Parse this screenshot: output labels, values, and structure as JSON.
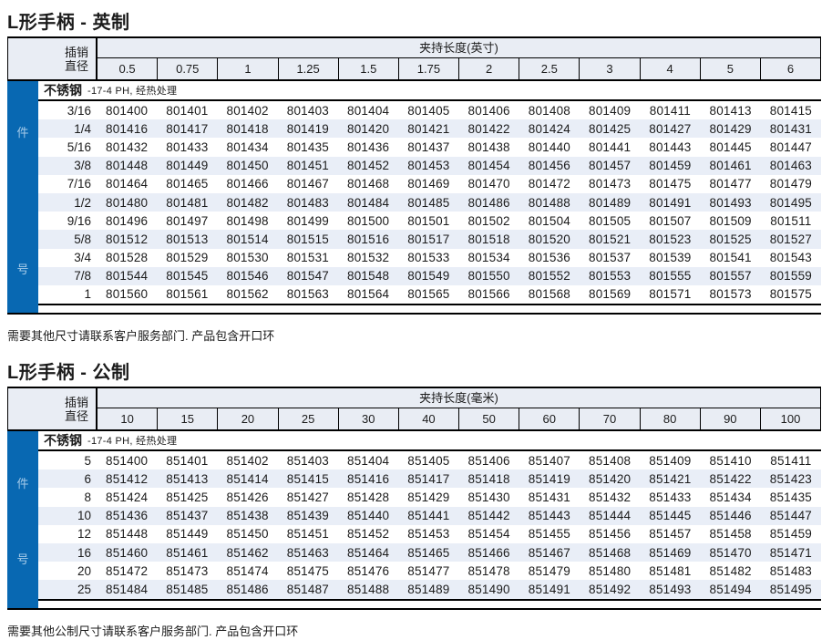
{
  "page": {
    "accent_blue": "#0868b2",
    "stripe_color": "#e9eef7",
    "header_bg": "#e9edf4"
  },
  "table1": {
    "title": "L形手柄 - 英制",
    "corner_line1": "插销",
    "corner_line2": "直径",
    "span_header": "夹持长度(英寸)",
    "columns": [
      "0.5",
      "0.75",
      "1",
      "1.25",
      "1.5",
      "1.75",
      "2",
      "2.5",
      "3",
      "4",
      "5",
      "6"
    ],
    "material_bold": "不锈钢",
    "material_rest": "-17-4 PH, 经热处理",
    "side_top": "件",
    "side_bottom": "号",
    "rows": [
      {
        "dia": "3/16",
        "parts": [
          "801400",
          "801401",
          "801402",
          "801403",
          "801404",
          "801405",
          "801406",
          "801408",
          "801409",
          "801411",
          "801413",
          "801415"
        ]
      },
      {
        "dia": "1/4",
        "parts": [
          "801416",
          "801417",
          "801418",
          "801419",
          "801420",
          "801421",
          "801422",
          "801424",
          "801425",
          "801427",
          "801429",
          "801431"
        ]
      },
      {
        "dia": "5/16",
        "parts": [
          "801432",
          "801433",
          "801434",
          "801435",
          "801436",
          "801437",
          "801438",
          "801440",
          "801441",
          "801443",
          "801445",
          "801447"
        ]
      },
      {
        "dia": "3/8",
        "parts": [
          "801448",
          "801449",
          "801450",
          "801451",
          "801452",
          "801453",
          "801454",
          "801456",
          "801457",
          "801459",
          "801461",
          "801463"
        ]
      },
      {
        "dia": "7/16",
        "parts": [
          "801464",
          "801465",
          "801466",
          "801467",
          "801468",
          "801469",
          "801470",
          "801472",
          "801473",
          "801475",
          "801477",
          "801479"
        ]
      },
      {
        "dia": "1/2",
        "parts": [
          "801480",
          "801481",
          "801482",
          "801483",
          "801484",
          "801485",
          "801486",
          "801488",
          "801489",
          "801491",
          "801493",
          "801495"
        ]
      },
      {
        "dia": "9/16",
        "parts": [
          "801496",
          "801497",
          "801498",
          "801499",
          "801500",
          "801501",
          "801502",
          "801504",
          "801505",
          "801507",
          "801509",
          "801511"
        ]
      },
      {
        "dia": "5/8",
        "parts": [
          "801512",
          "801513",
          "801514",
          "801515",
          "801516",
          "801517",
          "801518",
          "801520",
          "801521",
          "801523",
          "801525",
          "801527"
        ]
      },
      {
        "dia": "3/4",
        "parts": [
          "801528",
          "801529",
          "801530",
          "801531",
          "801532",
          "801533",
          "801534",
          "801536",
          "801537",
          "801539",
          "801541",
          "801543"
        ]
      },
      {
        "dia": "7/8",
        "parts": [
          "801544",
          "801545",
          "801546",
          "801547",
          "801548",
          "801549",
          "801550",
          "801552",
          "801553",
          "801555",
          "801557",
          "801559"
        ]
      },
      {
        "dia": "1",
        "parts": [
          "801560",
          "801561",
          "801562",
          "801563",
          "801564",
          "801565",
          "801566",
          "801568",
          "801569",
          "801571",
          "801573",
          "801575"
        ]
      }
    ],
    "note": "需要其他尺寸请联系客户服务部门.  产品包含开口环"
  },
  "table2": {
    "title": "L形手柄 - 公制",
    "corner_line1": "插销",
    "corner_line2": "直径",
    "span_header": "夹持长度(毫米)",
    "columns": [
      "10",
      "15",
      "20",
      "25",
      "30",
      "40",
      "50",
      "60",
      "70",
      "80",
      "90",
      "100"
    ],
    "material_bold": "不锈钢",
    "material_rest": "-17-4 PH, 经热处理",
    "side_top": "件",
    "side_bottom": "号",
    "rows": [
      {
        "dia": "5",
        "parts": [
          "851400",
          "851401",
          "851402",
          "851403",
          "851404",
          "851405",
          "851406",
          "851407",
          "851408",
          "851409",
          "851410",
          "851411"
        ]
      },
      {
        "dia": "6",
        "parts": [
          "851412",
          "851413",
          "851414",
          "851415",
          "851416",
          "851417",
          "851418",
          "851419",
          "851420",
          "851421",
          "851422",
          "851423"
        ]
      },
      {
        "dia": "8",
        "parts": [
          "851424",
          "851425",
          "851426",
          "851427",
          "851428",
          "851429",
          "851430",
          "851431",
          "851432",
          "851433",
          "851434",
          "851435"
        ]
      },
      {
        "dia": "10",
        "parts": [
          "851436",
          "851437",
          "851438",
          "851439",
          "851440",
          "851441",
          "851442",
          "851443",
          "851444",
          "851445",
          "851446",
          "851447"
        ]
      },
      {
        "dia": "12",
        "parts": [
          "851448",
          "851449",
          "851450",
          "851451",
          "851452",
          "851453",
          "851454",
          "851455",
          "851456",
          "851457",
          "851458",
          "851459"
        ]
      },
      {
        "dia": "16",
        "parts": [
          "851460",
          "851461",
          "851462",
          "851463",
          "851464",
          "851465",
          "851466",
          "851467",
          "851468",
          "851469",
          "851470",
          "851471"
        ]
      },
      {
        "dia": "20",
        "parts": [
          "851472",
          "851473",
          "851474",
          "851475",
          "851476",
          "851477",
          "851478",
          "851479",
          "851480",
          "851481",
          "851482",
          "851483"
        ]
      },
      {
        "dia": "25",
        "parts": [
          "851484",
          "851485",
          "851486",
          "851487",
          "851488",
          "851489",
          "851490",
          "851491",
          "851492",
          "851493",
          "851494",
          "851495"
        ]
      }
    ],
    "note": "需要其他公制尺寸请联系客户服务部门.  产品包含开口环"
  }
}
